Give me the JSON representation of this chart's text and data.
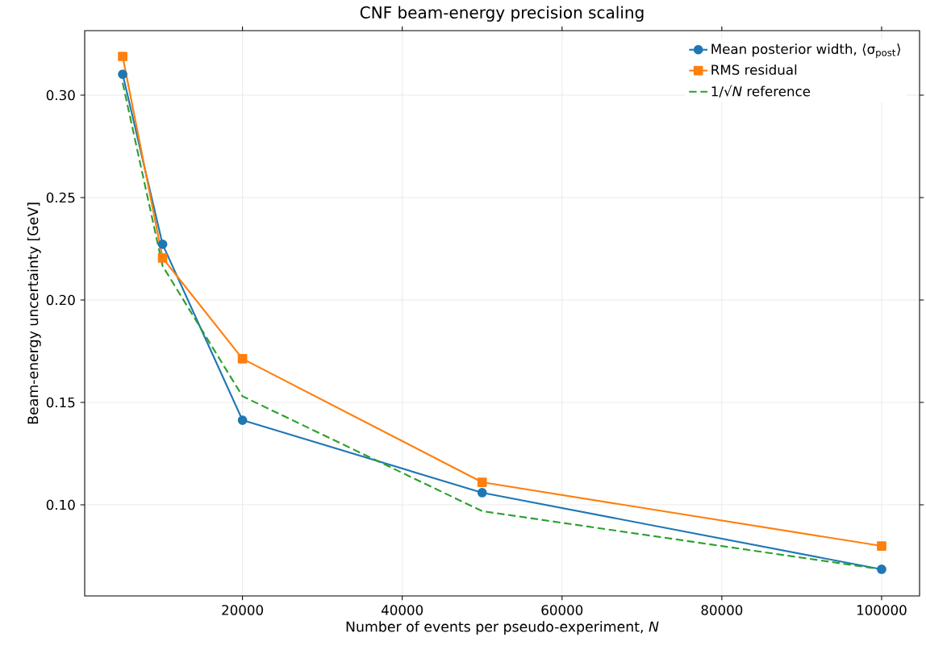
{
  "chart_data": {
    "type": "line",
    "title": "CNF beam-energy precision scaling",
    "xlabel": "Number of events per pseudo-experiment, *N*",
    "ylabel": "Beam-energy uncertainty [GeV]",
    "x": [
      5000,
      10000,
      20000,
      50000,
      100000
    ],
    "series": [
      {
        "name": "Mean posterior width, ⟨σ$_{post}$⟩",
        "color": "#1f77b4",
        "marker": "circle",
        "line_style": "solid",
        "values": [
          0.3102,
          0.2272,
          0.1413,
          0.1059,
          0.0685
        ]
      },
      {
        "name": "RMS residual",
        "color": "#ff7f0e",
        "marker": "square",
        "line_style": "solid",
        "values": [
          0.3189,
          0.2205,
          0.1713,
          0.111,
          0.0799
        ]
      },
      {
        "name": "1/√*N* reference",
        "color": "#2ca02c",
        "marker": "none",
        "line_style": "dashed",
        "values": [
          0.306,
          0.2166,
          0.153,
          0.0969,
          0.0685
        ]
      }
    ],
    "xlim": [
      250,
      104750
    ],
    "ylim": [
      0.0555,
      0.3315
    ],
    "xticks": [
      20000,
      40000,
      60000,
      80000,
      100000
    ],
    "yticks": [
      {
        "value": 0.1,
        "label": "0.10"
      },
      {
        "value": 0.15,
        "label": "0.15"
      },
      {
        "value": 0.2,
        "label": "0.20"
      },
      {
        "value": 0.25,
        "label": "0.25"
      },
      {
        "value": 0.3,
        "label": "0.30"
      }
    ],
    "grid": true,
    "legend": "top right"
  }
}
